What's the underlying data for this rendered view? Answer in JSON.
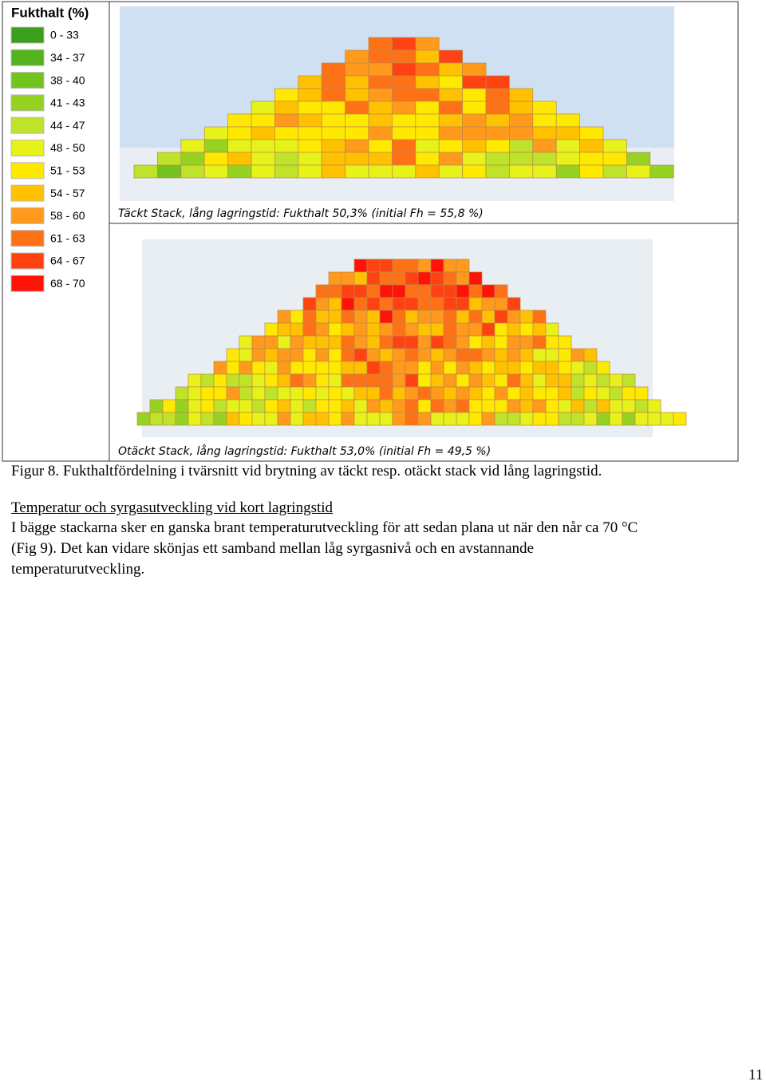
{
  "figure": {
    "legend": {
      "title": "Fukthalt (%)",
      "items": [
        {
          "label": "0 - 33",
          "color": "#3c9f1c"
        },
        {
          "label": "34 - 37",
          "color": "#55b21f"
        },
        {
          "label": "38 - 40",
          "color": "#73c31f"
        },
        {
          "label": "41 - 43",
          "color": "#96d222"
        },
        {
          "label": "44 - 47",
          "color": "#bfe22a"
        },
        {
          "label": "48 - 50",
          "color": "#e6f21a"
        },
        {
          "label": "51 - 53",
          "color": "#ffe900"
        },
        {
          "label": "54 - 57",
          "color": "#ffc100"
        },
        {
          "label": "58 - 60",
          "color": "#ff9a1c"
        },
        {
          "label": "61 - 63",
          "color": "#ff7116"
        },
        {
          "label": "64 - 67",
          "color": "#ff4212"
        },
        {
          "label": "68 - 70",
          "color": "#ff1208"
        }
      ]
    },
    "panels": [
      {
        "caption": "Täckt Stack, lång lagringstid: Fukthalt 50,3% (initial Fh = 55,8 %)"
      },
      {
        "caption": "Otäckt Stack, lång lagringstid: Fukthalt 53,0% (initial Fh = 49,5 %)"
      }
    ],
    "caption": "Figur 8. Fukthaltfördelning i tvärsnitt vid brytning av täckt resp. otäckt stack vid lång lagringstid."
  },
  "section": {
    "heading": "Temperatur och syrgasutveckling vid kort lagringstid",
    "lines": [
      "I bägge stackarna sker en ganska brant temperaturutveckling för att sedan plana ut när den når ca 70 °C",
      "(Fig 9). Det kan vidare skönjas ett samband mellan låg syrgasnivå och en avstannande",
      "temperaturutveckling."
    ]
  },
  "page_number": "11"
}
